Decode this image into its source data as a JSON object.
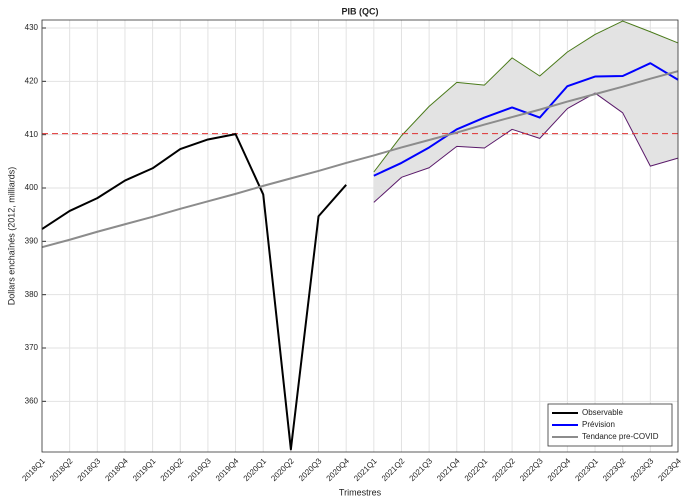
{
  "chart_data": {
    "type": "line",
    "title": "PIB (QC)",
    "xlabel": "Trimestres",
    "ylabel": "Dollars enchaînés (2012, milliards)",
    "categories": [
      "2018Q1",
      "2018Q2",
      "2018Q3",
      "2018Q4",
      "2019Q1",
      "2019Q2",
      "2019Q3",
      "2019Q4",
      "2020Q1",
      "2020Q2",
      "2020Q3",
      "2020Q4",
      "2021Q1",
      "2021Q2",
      "2021Q3",
      "2021Q4",
      "2022Q1",
      "2022Q2",
      "2022Q3",
      "2022Q4",
      "2023Q1",
      "2023Q2",
      "2023Q3",
      "2023Q4"
    ],
    "series": [
      {
        "name": "Observable",
        "color": "#000000",
        "values": [
          392.3,
          395.7,
          398.1,
          401.4,
          403.7,
          407.3,
          409.1,
          410.1,
          398.8,
          351.0,
          394.7,
          400.6,
          null,
          null,
          null,
          null,
          null,
          null,
          null,
          null,
          null,
          null,
          null,
          null
        ]
      },
      {
        "name": "Prévision",
        "color": "#0000ff",
        "values": [
          null,
          null,
          null,
          null,
          null,
          null,
          null,
          null,
          null,
          null,
          null,
          null,
          402.3,
          404.7,
          407.6,
          411.0,
          413.2,
          415.1,
          413.2,
          419.1,
          420.9,
          421.0,
          423.4,
          420.3
        ]
      },
      {
        "name": "Tendance pre-COVID",
        "color": "#8c8c8c",
        "values": [
          388.9,
          390.3,
          391.8,
          393.2,
          394.6,
          396.1,
          397.5,
          398.9,
          400.4,
          401.8,
          403.2,
          404.7,
          406.1,
          407.6,
          409.0,
          410.4,
          411.9,
          413.3,
          414.7,
          416.2,
          417.6,
          419.0,
          420.5,
          421.9
        ]
      }
    ],
    "band": {
      "fill": "#e3e3e3",
      "upper_color": "#4a7a1a",
      "lower_color": "#5a1a6a",
      "upper": [
        null,
        null,
        null,
        null,
        null,
        null,
        null,
        null,
        null,
        null,
        null,
        null,
        403.0,
        409.8,
        415.3,
        419.8,
        419.3,
        424.4,
        421.0,
        425.5,
        428.8,
        431.3,
        429.3,
        427.2
      ],
      "lower": [
        null,
        null,
        null,
        null,
        null,
        null,
        null,
        null,
        null,
        null,
        null,
        null,
        397.3,
        402.0,
        403.8,
        407.8,
        407.5,
        411.0,
        409.3,
        414.9,
        417.8,
        414.1,
        404.1,
        405.6
      ]
    },
    "reference_line": {
      "value": 410.2,
      "color": "#e03030"
    },
    "ylim": [
      350.5,
      431.5
    ],
    "yticks": [
      360,
      370,
      380,
      390,
      400,
      410,
      420,
      430
    ],
    "grid": true,
    "legend": "lower-right"
  }
}
